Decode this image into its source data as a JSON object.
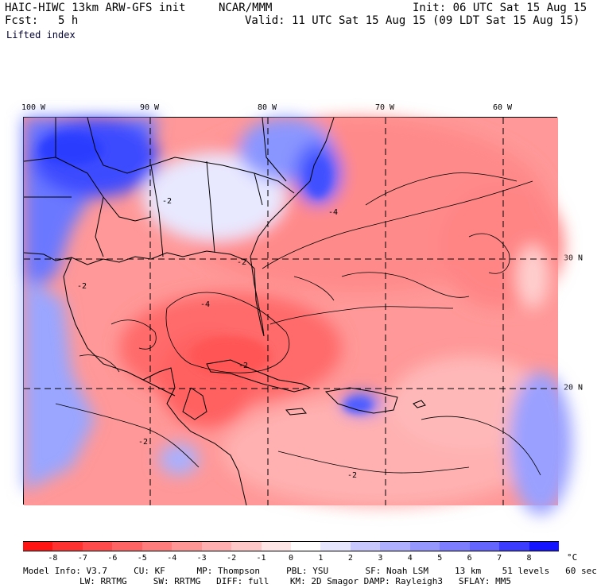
{
  "header": {
    "model": "HAIC-HIWC 13km ARW-GFS init",
    "org": "NCAR/MMM",
    "init": "Init: 06 UTC Sat 15 Aug 15",
    "fcst_label": "Fcst:",
    "fcst_value": "5 h",
    "valid": "Valid: 11 UTC Sat 15 Aug 15 (09 LDT Sat 15 Aug 15)",
    "field": "Lifted index"
  },
  "map": {
    "lon_labels": [
      "100 W",
      "90 W",
      "80 W",
      "70 W",
      "60 W"
    ],
    "lat_labels": [
      "30 N",
      "20 N"
    ],
    "contour_labels": [
      "-2",
      "-2",
      "-2",
      "-4",
      "-4",
      "-2",
      "-2",
      "-2"
    ]
  },
  "colorbar": {
    "labels": [
      "-8",
      "-7",
      "-6",
      "-5",
      "-4",
      "-3",
      "-2",
      "-1",
      "0",
      "1",
      "2",
      "3",
      "4",
      "5",
      "6",
      "7",
      "8"
    ],
    "unit": "°C",
    "colors": [
      "#ff1414",
      "#ff3232",
      "#ff4b4b",
      "#ff6464",
      "#ff7d7d",
      "#ff9696",
      "#ffafaf",
      "#ffc8c8",
      "#ffe6e6",
      "#ffffff",
      "#e6e6ff",
      "#c8c8ff",
      "#afafff",
      "#9696ff",
      "#7d7dff",
      "#6464ff",
      "#3c3cff",
      "#1414ff"
    ]
  },
  "model_info": {
    "line1": "Model Info: V3.7     CU: KF      MP: Thompson     PBL: YSU       SF: Noah LSM     13 km    51 levels   60 sec",
    "line2": "LW: RRTMG     SW: RRTMG   DIFF: full    KM: 2D Smagor DAMP: Rayleigh3   SFLAY: MM5"
  }
}
